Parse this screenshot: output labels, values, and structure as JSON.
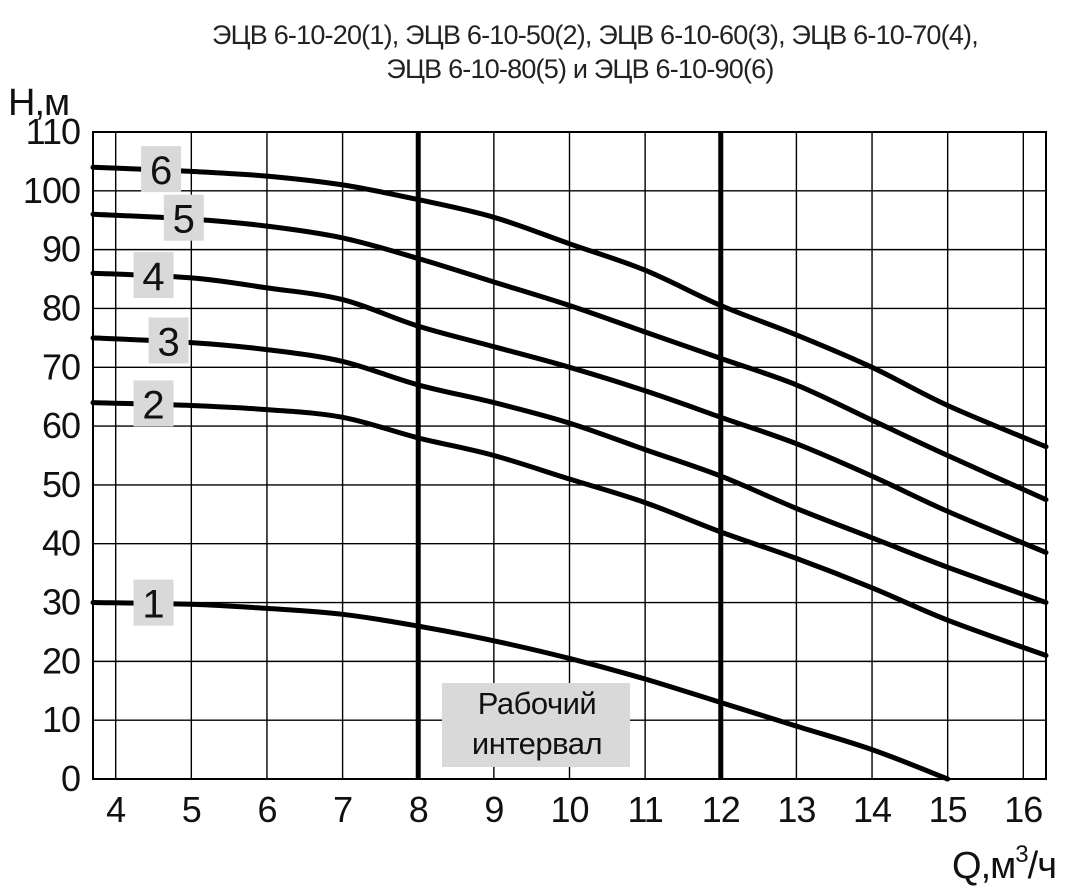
{
  "chart_data": {
    "type": "line",
    "title_lines": [
      "ЭЦВ 6-10-20(1), ЭЦВ 6-10-50(2), ЭЦВ 6-10-60(3), ЭЦВ 6-10-70(4),",
      "ЭЦВ 6-10-80(5) и ЭЦВ 6-10-90(6)"
    ],
    "ylabel": "Н,м",
    "xlabel": "Q,м",
    "xlabel_superscript": "3",
    "xlabel_suffix": "/ч",
    "xlim": [
      3.7,
      16.3
    ],
    "ylim": [
      0,
      110
    ],
    "xticks": [
      "4",
      "5",
      "6",
      "7",
      "8",
      "9",
      "10",
      "11",
      "12",
      "13",
      "14",
      "15",
      "16"
    ],
    "yticks": [
      "0",
      "10",
      "20",
      "30",
      "40",
      "50",
      "60",
      "70",
      "80",
      "90",
      "100",
      "110"
    ],
    "grid": true,
    "working_interval": {
      "x_start": 8,
      "x_end": 12,
      "label_lines": [
        "Рабочий",
        "интервал"
      ]
    },
    "series": [
      {
        "name": "1",
        "x": [
          3.7,
          5,
          6,
          7,
          8,
          9,
          10,
          11,
          12,
          13,
          14,
          15
        ],
        "y": [
          30,
          29.7,
          29,
          28,
          26,
          23.5,
          20.5,
          17,
          13,
          9,
          5,
          0
        ]
      },
      {
        "name": "2",
        "x": [
          3.7,
          5,
          6,
          7,
          8,
          9,
          10,
          11,
          12,
          13,
          14,
          15,
          16.3
        ],
        "y": [
          64,
          63.5,
          62.8,
          61.5,
          58,
          55,
          51,
          47,
          42,
          37.5,
          32.5,
          27,
          21
        ]
      },
      {
        "name": "3",
        "x": [
          3.7,
          5,
          6,
          7,
          8,
          9,
          10,
          11,
          12,
          13,
          14,
          15,
          16.3
        ],
        "y": [
          75,
          74.2,
          73,
          71,
          67,
          64,
          60.5,
          56,
          51.5,
          46,
          41,
          36,
          30
        ]
      },
      {
        "name": "4",
        "x": [
          3.7,
          5,
          6,
          7,
          8,
          9,
          10,
          11,
          12,
          13,
          14,
          15,
          16.3
        ],
        "y": [
          86,
          85.2,
          83.5,
          81.5,
          77,
          73.5,
          70,
          66,
          61.5,
          57,
          51.5,
          45.5,
          38.5
        ]
      },
      {
        "name": "5",
        "x": [
          3.7,
          5,
          6,
          7,
          8,
          9,
          10,
          11,
          12,
          13,
          14,
          15,
          16.3
        ],
        "y": [
          96,
          95.2,
          94,
          92,
          88.5,
          84.5,
          80.5,
          76,
          71.5,
          67,
          61,
          55,
          47.5
        ]
      },
      {
        "name": "6",
        "x": [
          3.7,
          5,
          6,
          7,
          8,
          9,
          10,
          11,
          12,
          13,
          14,
          15,
          16.3
        ],
        "y": [
          104,
          103.3,
          102.5,
          101,
          98.5,
          95.5,
          91,
          86.5,
          80.5,
          75.5,
          70,
          63.5,
          56.5
        ]
      }
    ],
    "colors": {
      "line": "#000000",
      "grid": "#000000",
      "label_box": "#d9d9d9",
      "axis_text": "#111111"
    }
  }
}
